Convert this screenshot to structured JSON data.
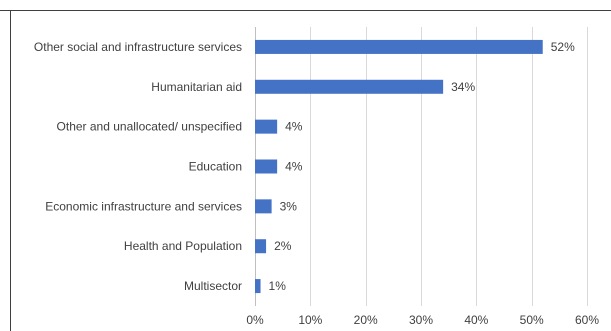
{
  "chart_data": {
    "type": "bar",
    "orientation": "horizontal",
    "categories": [
      "Other social and infrastructure services",
      "Humanitarian aid",
      "Other and unallocated/ unspecified",
      "Education",
      "Economic infrastructure and services",
      "Health and Population",
      "Multisector"
    ],
    "values": [
      52,
      34,
      4,
      4,
      3,
      2,
      1
    ],
    "data_labels": [
      "52%",
      "34%",
      "4%",
      "4%",
      "3%",
      "2%",
      "1%"
    ],
    "x_ticks": [
      0,
      10,
      20,
      30,
      40,
      50,
      60
    ],
    "x_tick_labels": [
      "0%",
      "10%",
      "20%",
      "30%",
      "40%",
      "50%",
      "60%"
    ],
    "xlim": [
      0,
      60
    ],
    "grid": "vertical",
    "legend": "none",
    "colors": {
      "bar": "#4472C4",
      "grid": "#D9D9D9",
      "frame": "#404040"
    }
  }
}
